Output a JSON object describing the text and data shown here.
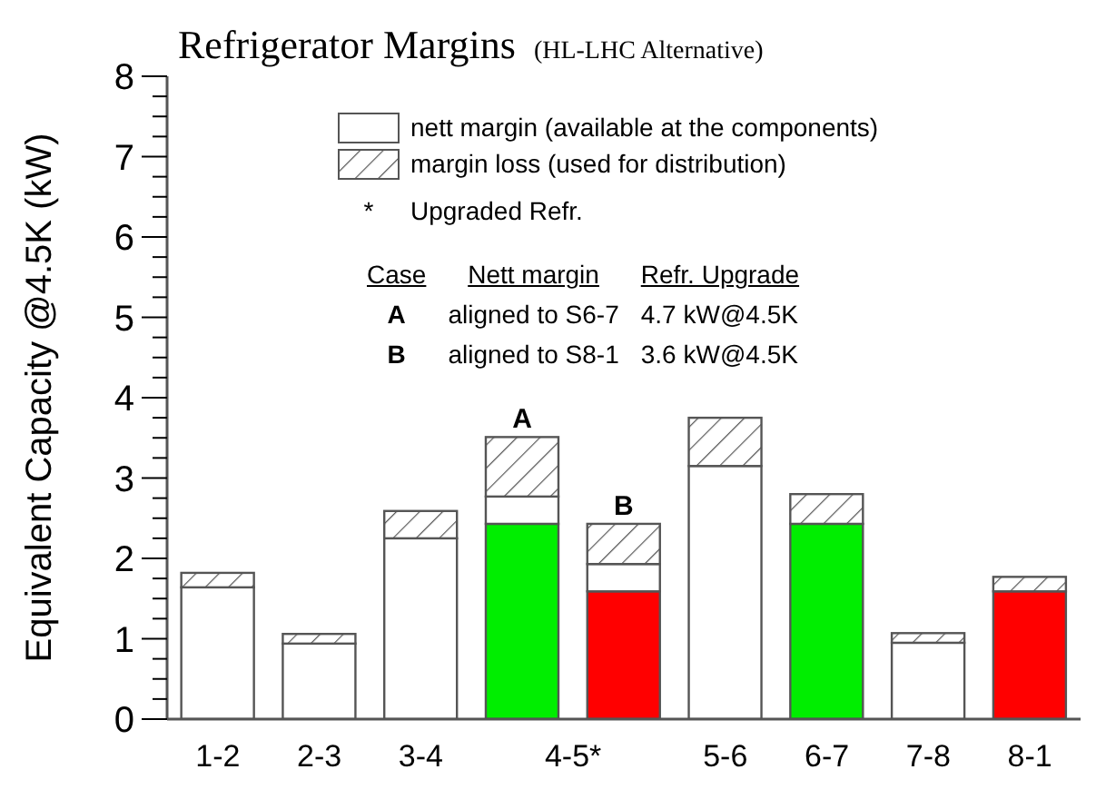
{
  "chart_data": {
    "type": "bar",
    "title": "Refrigerator Margins",
    "subtitle": "(HL-LHC Alternative)",
    "ylabel": "Equivalent Capacity @4.5K (kW)",
    "categories": [
      "1-2",
      "2-3",
      "3-4",
      "4-5*",
      null,
      "5-6",
      "6-7",
      "7-8",
      "8-1"
    ],
    "stacked": true,
    "series": [
      {
        "name": "nett margin (available at the components)",
        "color": "#ffffff",
        "colors": [
          "#ffffff",
          "#ffffff",
          "#ffffff",
          "#00ee00",
          "#ff0000",
          "#ffffff",
          "#00ee00",
          "#ffffff",
          "#ff0000"
        ],
        "values": [
          1.64,
          0.94,
          2.25,
          2.43,
          1.59,
          3.15,
          2.43,
          0.95,
          1.59
        ]
      },
      {
        "color": "#ffffff",
        "values": [
          null,
          null,
          null,
          0.34,
          0.34,
          null,
          null,
          null,
          null
        ]
      },
      {
        "name": "margin loss (used for distribution)",
        "color": "#555555",
        "values": [
          0.18,
          0.12,
          0.34,
          0.74,
          0.5,
          0.6,
          0.37,
          0.12,
          0.18
        ],
        "value_labels": [
          null,
          null,
          null,
          "A",
          "B",
          null,
          null,
          null,
          null
        ]
      }
    ],
    "ylim": [
      0,
      8
    ],
    "yticks": [
      0,
      {
        "value": 0.25,
        "label": null
      },
      {
        "value": 0.5,
        "label": null
      },
      {
        "value": 0.75,
        "label": null
      },
      1,
      {
        "value": 1.25,
        "label": null
      },
      {
        "value": 1.5,
        "label": null
      },
      {
        "value": 1.75,
        "label": null
      },
      2,
      {
        "value": 2.25,
        "label": null
      },
      {
        "value": 2.5,
        "label": null
      },
      {
        "value": 2.75,
        "label": null
      },
      3,
      {
        "value": 3.25,
        "label": null
      },
      {
        "value": 3.5,
        "label": null
      },
      {
        "value": 3.75,
        "label": null
      },
      4,
      {
        "value": 4.25,
        "label": null
      },
      {
        "value": 4.5,
        "label": null
      },
      {
        "value": 4.75,
        "label": null
      },
      5,
      {
        "value": 5.25,
        "label": null
      },
      {
        "value": 5.5,
        "label": null
      },
      {
        "value": 5.75,
        "label": null
      },
      6,
      {
        "value": 6.25,
        "label": null
      },
      {
        "value": 6.5,
        "label": null
      },
      {
        "value": 6.75,
        "label": null
      },
      7,
      {
        "value": 7.25,
        "label": null
      },
      {
        "value": 7.5,
        "label": null
      },
      {
        "value": 7.75,
        "label": null
      },
      8
    ],
    "grid": false,
    "legend": "top right",
    "annotations": [
      "*",
      "Upgraded Refr.",
      "Case",
      "Nett margin",
      "Refr. Upgrade",
      "A",
      "aligned to S6-7",
      "4.7 kW@4.5K",
      "B",
      "aligned to S8-1",
      "3.6 kW@4.5K"
    ]
  }
}
